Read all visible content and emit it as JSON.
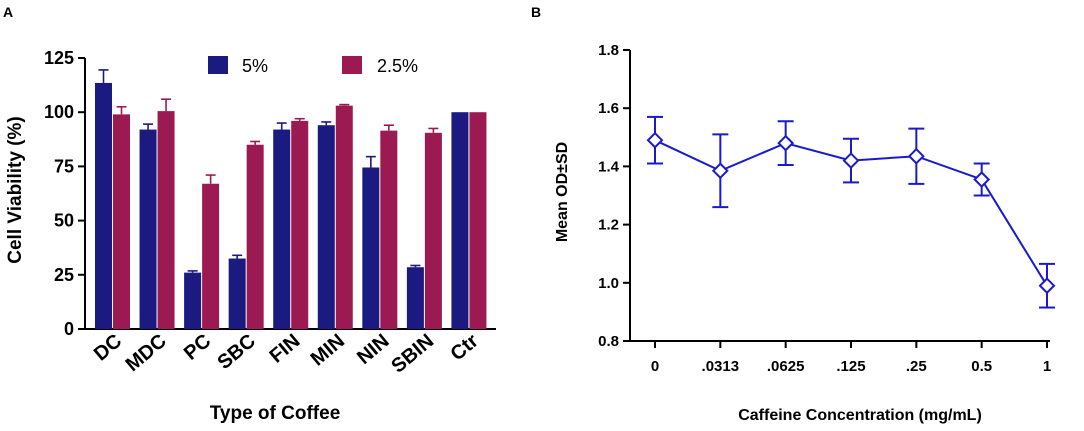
{
  "chart_data": [
    {
      "panel": "A",
      "type": "bar",
      "title": "",
      "xlabel": "Type of Coffee",
      "ylabel": "Cell Viability (%)",
      "ylim": [
        0,
        125
      ],
      "yticks": [
        0,
        25,
        50,
        75,
        100,
        125
      ],
      "categories": [
        "DC",
        "MDC",
        "PC",
        "SBC",
        "FIN",
        "MIN",
        "NIN",
        "SBIN",
        "Ctr"
      ],
      "series": [
        {
          "name": "5%",
          "color": "#1a1a80",
          "values": [
            113.5,
            92,
            26,
            32.5,
            92,
            94,
            74.5,
            28.5,
            100
          ],
          "errors": [
            6,
            2.5,
            0.8,
            1.5,
            3,
            1.5,
            5,
            0.8,
            0
          ]
        },
        {
          "name": "2.5%",
          "color": "#9c1a52",
          "values": [
            99,
            100.5,
            67,
            85,
            96,
            103,
            91.5,
            90.5,
            100
          ],
          "errors": [
            3.5,
            5.5,
            4,
            1.5,
            1,
            0.5,
            2.5,
            2,
            0
          ]
        }
      ],
      "legend": "top"
    },
    {
      "panel": "B",
      "type": "line",
      "title": "",
      "xlabel": "Caffeine Concentration (mg/mL)",
      "ylabel": "Mean OD±SD",
      "ylim": [
        0.8,
        1.8
      ],
      "yticks": [
        "0.8",
        "1.0",
        "1.2",
        "1.4",
        "1.6",
        "1.8"
      ],
      "categories": [
        "0",
        ".0313",
        ".0625",
        ".125",
        ".25",
        "0.5",
        "1"
      ],
      "series": [
        {
          "name": "Mean OD",
          "color": "#1a1acc",
          "values": [
            1.49,
            1.385,
            1.48,
            1.42,
            1.435,
            1.355,
            0.99
          ],
          "errors": [
            0.08,
            0.125,
            0.075,
            0.075,
            0.095,
            0.055,
            0.075
          ]
        }
      ]
    }
  ]
}
